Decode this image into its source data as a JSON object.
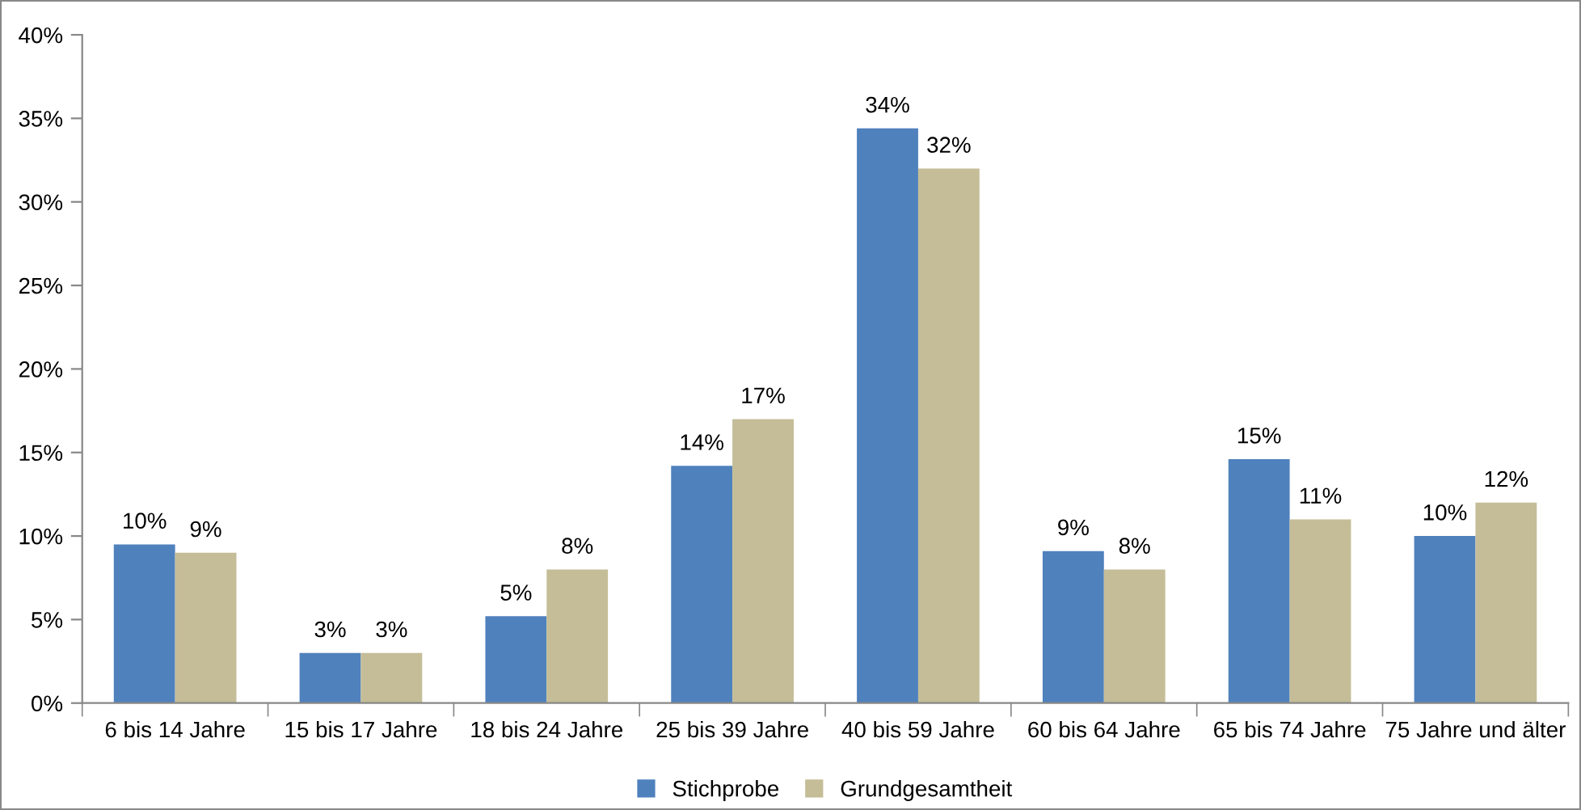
{
  "chart_data": {
    "type": "bar",
    "categories": [
      "6 bis 14 Jahre",
      "15 bis 17 Jahre",
      "18 bis 24 Jahre",
      "25 bis 39 Jahre",
      "40 bis 59 Jahre",
      "60 bis 64 Jahre",
      "65 bis 74 Jahre",
      "75 Jahre und älter"
    ],
    "series": [
      {
        "name": "Stichprobe",
        "color": "#4f81bd",
        "values": [
          9.5,
          3.0,
          5.2,
          14.2,
          34.4,
          9.1,
          14.6,
          10.0
        ],
        "value_labels": [
          "10%",
          "3%",
          "5%",
          "14%",
          "34%",
          "9%",
          "15%",
          "10%"
        ]
      },
      {
        "name": "Grundgesamtheit",
        "color": "#c4bd97",
        "values": [
          9.0,
          3.0,
          8.0,
          17.0,
          32.0,
          8.0,
          11.0,
          12.0
        ],
        "value_labels": [
          "9%",
          "3%",
          "8%",
          "17%",
          "32%",
          "8%",
          "11%",
          "12%"
        ]
      }
    ],
    "ylim": [
      0,
      40
    ],
    "yticks": [
      {
        "value": 0,
        "label": "0%"
      },
      {
        "value": 5,
        "label": "5%"
      },
      {
        "value": 10,
        "label": "10%"
      },
      {
        "value": 15,
        "label": "15%"
      },
      {
        "value": 20,
        "label": "20%"
      },
      {
        "value": 25,
        "label": "25%"
      },
      {
        "value": 30,
        "label": "30%"
      },
      {
        "value": 35,
        "label": "35%"
      },
      {
        "value": 40,
        "label": "40%"
      }
    ],
    "grid": false,
    "legend": "bottom"
  }
}
